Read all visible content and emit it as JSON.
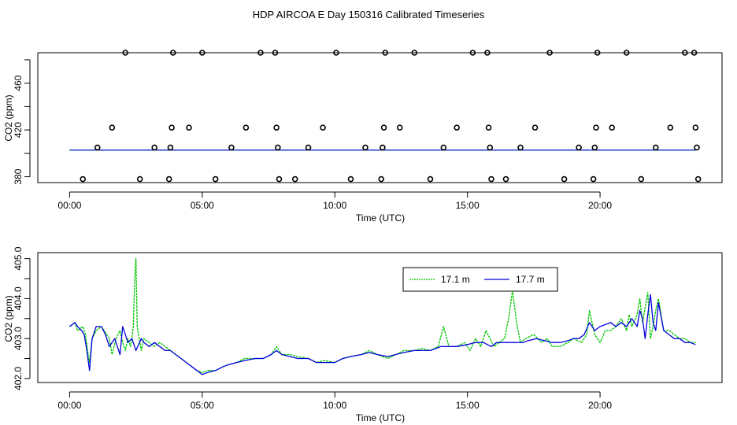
{
  "page": {
    "title": "HDP AIRCOA E  Day 150316  Calibrated Timeseries"
  },
  "colors": {
    "green": "#00c800",
    "blue": "#0000dd",
    "black": "#000000"
  },
  "chart_data": [
    {
      "type": "scatter",
      "id": "top",
      "xlabel": "Time (UTC)",
      "ylabel": "CO2 (ppm)",
      "xlim": [
        -1.2,
        24.6
      ],
      "ylim": [
        375,
        486
      ],
      "xticks": [
        0,
        5,
        10,
        15,
        20
      ],
      "xtick_labels": [
        "00:00",
        "05:00",
        "10:00",
        "15:00",
        "20:00"
      ],
      "yticks": [
        380,
        420,
        460
      ],
      "ytick_labels": [
        "380",
        "420",
        "460"
      ],
      "calibration_points": {
        "x": [
          0.5,
          1.05,
          1.6,
          2.1,
          2.65,
          3.2,
          3.75,
          3.8,
          3.85,
          3.9,
          4.5,
          5.0,
          5.5,
          6.1,
          6.65,
          7.2,
          7.75,
          7.8,
          7.85,
          7.9,
          8.5,
          9.0,
          9.55,
          10.05,
          10.6,
          11.15,
          11.75,
          11.8,
          11.85,
          11.9,
          12.45,
          13.0,
          13.6,
          14.1,
          14.6,
          15.2,
          15.75,
          15.8,
          15.85,
          15.9,
          16.45,
          17.0,
          17.55,
          18.1,
          18.65,
          19.2,
          19.75,
          19.8,
          19.85,
          19.9,
          20.45,
          21.0,
          21.55,
          22.1,
          22.65,
          23.2,
          23.55,
          23.6,
          23.65,
          23.7
        ],
        "y": [
          378,
          405,
          422,
          486,
          378,
          405,
          378,
          405,
          422,
          486,
          422,
          486,
          378,
          405,
          422,
          486,
          486,
          422,
          405,
          378,
          378,
          405,
          422,
          486,
          378,
          405,
          378,
          405,
          422,
          486,
          422,
          486,
          378,
          405,
          422,
          486,
          486,
          422,
          405,
          378,
          378,
          405,
          422,
          486,
          378,
          405,
          378,
          405,
          422,
          486,
          422,
          486,
          378,
          405,
          422,
          486,
          486,
          422,
          405,
          378
        ]
      },
      "series": [
        {
          "name": "17.1 m",
          "color": "#00c800",
          "x": [
            0,
            23.6
          ],
          "y": [
            402.8,
            402.8
          ]
        },
        {
          "name": "17.7 m",
          "color": "#0000dd",
          "x": [
            0,
            23.6
          ],
          "y": [
            402.8,
            402.8
          ]
        }
      ]
    },
    {
      "type": "line",
      "id": "bottom",
      "xlabel": "Time (UTC)",
      "ylabel": "CO2 (ppm)",
      "xlim": [
        -1.2,
        24.6
      ],
      "ylim": [
        401.9,
        405.15
      ],
      "xticks": [
        0,
        5,
        10,
        15,
        20
      ],
      "xtick_labels": [
        "00:00",
        "05:00",
        "10:00",
        "15:00",
        "20:00"
      ],
      "yticks": [
        402.0,
        403.0,
        404.0,
        405.0
      ],
      "ytick_labels": [
        "402.0",
        "403.0",
        "404.0",
        "405.0"
      ],
      "legend": {
        "position": "top-center",
        "entries": [
          "17.1 m",
          "17.7 m"
        ]
      },
      "series": [
        {
          "name": "17.1 m",
          "color": "#00c800",
          "dash": true,
          "x": [
            0,
            0.2,
            0.3,
            0.5,
            0.6,
            0.7,
            0.75,
            0.85,
            1.0,
            1.2,
            1.3,
            1.5,
            1.6,
            1.75,
            1.9,
            2.0,
            2.1,
            2.2,
            2.3,
            2.4,
            2.45,
            2.5,
            2.55,
            2.7,
            2.8,
            3.0,
            3.2,
            3.4,
            3.6,
            3.8,
            4.0,
            4.2,
            4.4,
            4.6,
            4.8,
            5.0,
            5.2,
            5.5,
            5.8,
            6.0,
            6.3,
            6.6,
            7.0,
            7.3,
            7.6,
            7.8,
            8.0,
            8.3,
            8.6,
            9.0,
            9.3,
            9.6,
            10.0,
            10.3,
            10.6,
            11.0,
            11.3,
            11.6,
            12.0,
            12.3,
            12.6,
            13.0,
            13.3,
            13.6,
            13.9,
            14.1,
            14.3,
            14.6,
            14.9,
            15.1,
            15.3,
            15.5,
            15.7,
            16.0,
            16.2,
            16.4,
            16.55,
            16.7,
            16.85,
            17.0,
            17.2,
            17.5,
            17.8,
            18.0,
            18.2,
            18.5,
            18.8,
            19.0,
            19.3,
            19.5,
            19.6,
            19.8,
            20.0,
            20.2,
            20.4,
            20.6,
            20.8,
            21.0,
            21.1,
            21.2,
            21.4,
            21.5,
            21.6,
            21.8,
            21.9,
            22.0,
            22.1,
            22.2,
            22.4,
            22.6,
            22.8,
            23.0,
            23.2,
            23.4,
            23.6
          ],
          "y": [
            403.3,
            403.4,
            403.2,
            403.3,
            403.1,
            402.6,
            402.4,
            403.0,
            403.2,
            403.3,
            403.2,
            403.0,
            402.6,
            403.0,
            403.2,
            402.9,
            402.7,
            403.0,
            402.8,
            403.3,
            404.4,
            405.0,
            403.3,
            402.7,
            403.0,
            402.9,
            402.8,
            402.9,
            402.8,
            402.7,
            402.6,
            402.5,
            402.4,
            402.3,
            402.2,
            402.15,
            402.2,
            402.2,
            402.3,
            402.35,
            402.4,
            402.5,
            402.5,
            402.5,
            402.6,
            402.8,
            402.6,
            402.6,
            402.55,
            402.5,
            402.4,
            402.45,
            402.4,
            402.5,
            402.55,
            402.6,
            402.7,
            402.6,
            402.5,
            402.6,
            402.7,
            402.7,
            402.75,
            402.7,
            402.8,
            403.3,
            402.8,
            402.8,
            402.9,
            402.7,
            403.0,
            402.8,
            403.2,
            402.8,
            402.9,
            403.0,
            403.5,
            404.2,
            403.4,
            402.9,
            403.0,
            403.1,
            402.9,
            403.0,
            402.8,
            402.8,
            402.9,
            403.0,
            402.9,
            403.1,
            403.7,
            403.1,
            402.9,
            403.2,
            403.2,
            403.3,
            403.5,
            403.2,
            403.6,
            403.3,
            403.6,
            404.0,
            403.4,
            404.15,
            403.0,
            403.3,
            403.7,
            404.0,
            403.2,
            403.2,
            403.1,
            403.0,
            403.0,
            402.9,
            402.9
          ]
        },
        {
          "name": "17.7 m",
          "color": "#0000dd",
          "dash": false,
          "x": [
            0,
            0.2,
            0.3,
            0.45,
            0.55,
            0.65,
            0.75,
            0.85,
            1.0,
            1.2,
            1.35,
            1.5,
            1.7,
            1.9,
            2.0,
            2.2,
            2.35,
            2.5,
            2.7,
            2.8,
            3.0,
            3.2,
            3.4,
            3.6,
            3.8,
            4.0,
            4.2,
            4.4,
            4.6,
            4.8,
            5.0,
            5.2,
            5.5,
            5.8,
            6.0,
            6.3,
            6.6,
            7.0,
            7.3,
            7.6,
            7.8,
            8.0,
            8.3,
            8.6,
            9.0,
            9.3,
            9.6,
            10.0,
            10.3,
            10.6,
            11.0,
            11.3,
            11.6,
            12.0,
            12.3,
            12.6,
            13.0,
            13.3,
            13.6,
            14.0,
            14.3,
            14.6,
            15.0,
            15.3,
            15.6,
            15.9,
            16.1,
            16.3,
            16.5,
            16.7,
            16.9,
            17.1,
            17.3,
            17.6,
            17.9,
            18.2,
            18.5,
            18.8,
            19.0,
            19.2,
            19.4,
            19.6,
            19.7,
            19.8,
            20.0,
            20.2,
            20.4,
            20.6,
            20.8,
            21.0,
            21.2,
            21.4,
            21.5,
            21.6,
            21.7,
            21.8,
            21.9,
            22.0,
            22.1,
            22.2,
            22.4,
            22.6,
            22.8,
            23.0,
            23.2,
            23.4,
            23.6
          ],
          "y": [
            403.3,
            403.4,
            403.3,
            403.2,
            403.1,
            402.7,
            402.2,
            403.0,
            403.3,
            403.3,
            403.1,
            402.8,
            403.0,
            402.6,
            403.3,
            402.9,
            403.0,
            402.7,
            403.0,
            402.9,
            402.8,
            402.9,
            402.8,
            402.7,
            402.7,
            402.6,
            402.5,
            402.4,
            402.3,
            402.2,
            402.1,
            402.15,
            402.2,
            402.3,
            402.35,
            402.4,
            402.45,
            402.5,
            402.5,
            402.6,
            402.7,
            402.6,
            402.55,
            402.5,
            402.5,
            402.4,
            402.4,
            402.4,
            402.5,
            402.55,
            402.6,
            402.65,
            402.6,
            402.55,
            402.6,
            402.65,
            402.7,
            402.7,
            402.7,
            402.8,
            402.8,
            402.8,
            402.85,
            402.9,
            402.9,
            402.8,
            402.9,
            402.9,
            402.9,
            402.9,
            402.9,
            402.9,
            402.95,
            403.0,
            402.95,
            402.9,
            402.9,
            402.95,
            403.0,
            403.0,
            403.1,
            403.4,
            403.3,
            403.2,
            403.3,
            403.35,
            403.4,
            403.3,
            403.4,
            403.3,
            403.5,
            403.3,
            403.7,
            403.5,
            403.0,
            403.6,
            404.1,
            403.4,
            403.2,
            403.9,
            403.2,
            403.1,
            403.0,
            403.0,
            402.9,
            402.9,
            402.85
          ]
        }
      ]
    }
  ]
}
